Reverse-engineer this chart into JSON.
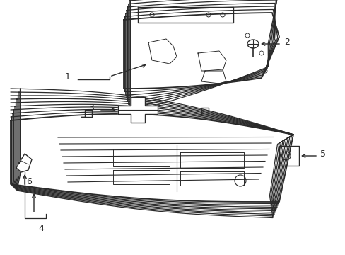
{
  "bg_color": "#ffffff",
  "line_color": "#2a2a2a",
  "line_width": 1.0,
  "fig_width": 4.89,
  "fig_height": 3.6,
  "dpi": 100,
  "upper_grille_shells": 8,
  "lower_grille_shells": 10
}
